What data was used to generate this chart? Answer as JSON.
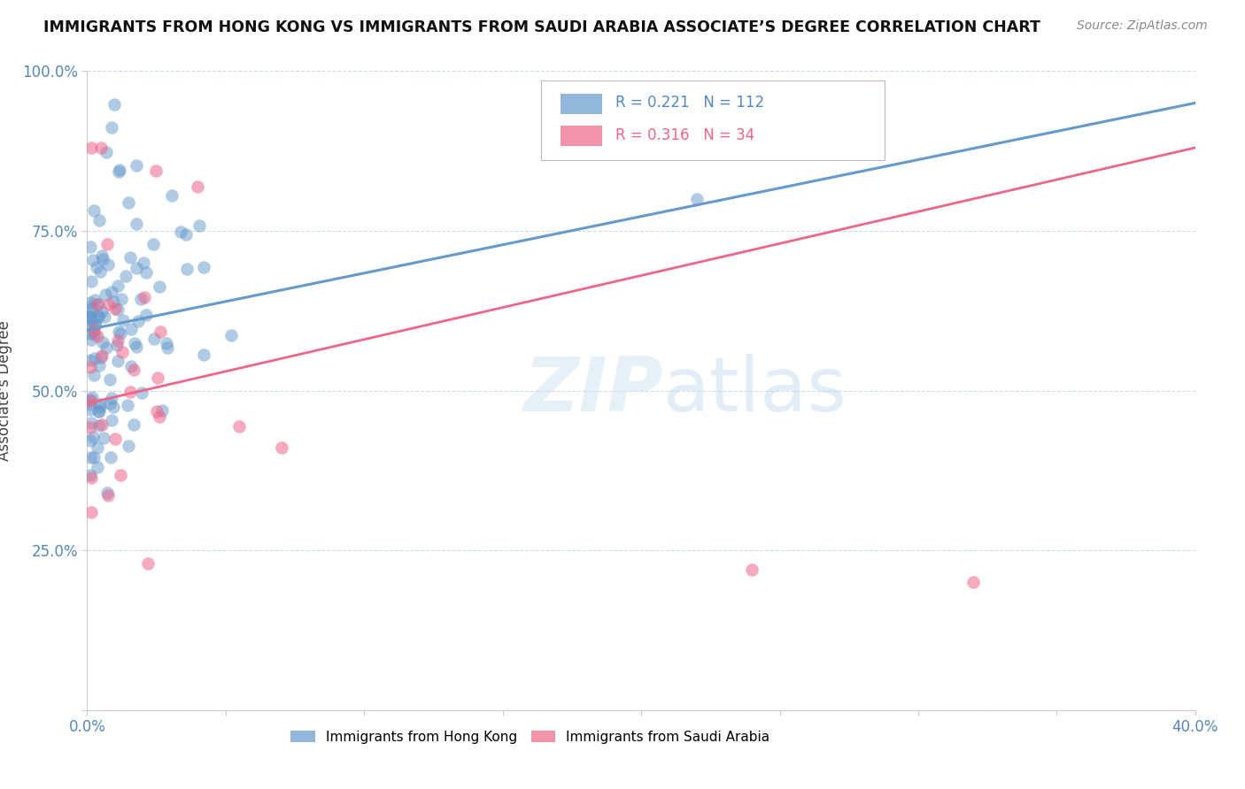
{
  "title": "IMMIGRANTS FROM HONG KONG VS IMMIGRANTS FROM SAUDI ARABIA ASSOCIATE’S DEGREE CORRELATION CHART",
  "source": "Source: ZipAtlas.com",
  "ylabel": "Associate's Degree",
  "xlim": [
    0.0,
    0.4
  ],
  "ylim": [
    0.0,
    1.0
  ],
  "r_hk": 0.221,
  "n_hk": 112,
  "r_sa": 0.316,
  "n_sa": 34,
  "color_hk": "#6699cc",
  "color_sa": "#ee6688",
  "legend_label_hk": "Immigrants from Hong Kong",
  "legend_label_sa": "Immigrants from Saudi Arabia",
  "hk_line": [
    0.0,
    0.595,
    0.4,
    0.95
  ],
  "sa_line": [
    0.0,
    0.48,
    0.4,
    0.88
  ],
  "hk_seed": 42,
  "sa_seed": 99
}
